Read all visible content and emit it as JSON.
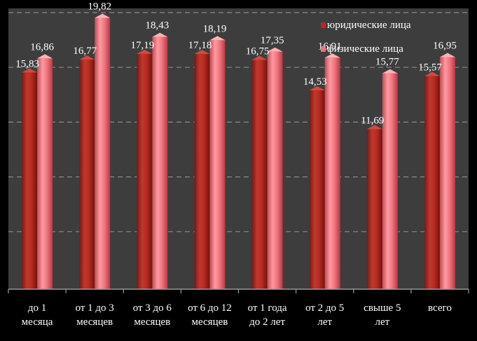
{
  "chart_data": {
    "type": "bar",
    "categories": [
      [
        "до 1",
        "месяца"
      ],
      [
        "от 1 до 3",
        "месяцев"
      ],
      [
        "от 3 до 6",
        "месяцев"
      ],
      [
        "от 6 до 12",
        "месяцев"
      ],
      [
        "от 1 года",
        "до 2 лет"
      ],
      [
        "от 2 до 5",
        "лет"
      ],
      [
        "свыше 5",
        "лет"
      ],
      [
        "всего"
      ]
    ],
    "series": [
      {
        "name": "юридические лица",
        "values": [
          15.83,
          16.77,
          17.19,
          17.18,
          16.75,
          14.53,
          11.69,
          15.57
        ],
        "labels": [
          "15,83",
          "16,77",
          "17,19",
          "17,18",
          "16,75",
          "14,53",
          "11,69",
          "15,57"
        ],
        "color": "#b52a22"
      },
      {
        "name": "физические лица",
        "values": [
          16.86,
          19.82,
          18.43,
          18.19,
          17.35,
          16.91,
          15.77,
          16.95
        ],
        "labels": [
          "16,86",
          "19,82",
          "18,43",
          "18,19",
          "17,35",
          "16,91",
          "15,77",
          "16,95"
        ],
        "color": "#f0727c"
      }
    ],
    "ylim": [
      0,
      20
    ],
    "grid": true,
    "legend_position": "top-right",
    "colors": {
      "background": "#000000",
      "plot_background": "#3d3d3d",
      "gridline": "#8a8a8a",
      "text": "#ffffff"
    }
  }
}
